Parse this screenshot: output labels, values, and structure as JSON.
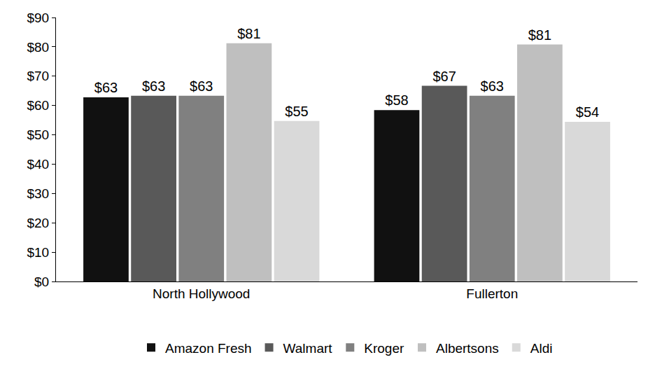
{
  "chart_data": {
    "type": "bar",
    "categories": [
      "North Hollywood",
      "Fullerton"
    ],
    "series": [
      {
        "name": "Amazon Fresh",
        "color": "#111111",
        "values": [
          62.8,
          58.4
        ],
        "value_labels": [
          "$63",
          "$58"
        ]
      },
      {
        "name": "Walmart",
        "color": "#595959",
        "values": [
          63.3,
          66.7
        ],
        "value_labels": [
          "$63",
          "$67"
        ]
      },
      {
        "name": "Kroger",
        "color": "#808080",
        "values": [
          63.3,
          63.3
        ],
        "value_labels": [
          "$63",
          "$63"
        ]
      },
      {
        "name": "Albertsons",
        "color": "#bfbfbf",
        "values": [
          81.2,
          80.8
        ],
        "value_labels": [
          "$81",
          "$81"
        ]
      },
      {
        "name": "Aldi",
        "color": "#d9d9d9",
        "values": [
          54.7,
          54.4
        ],
        "value_labels": [
          "$55",
          "$54"
        ]
      }
    ],
    "ylim": [
      0,
      90
    ],
    "yticks": [
      {
        "value": 0,
        "label": "$0"
      },
      {
        "value": 10,
        "label": "$10"
      },
      {
        "value": 20,
        "label": "$20"
      },
      {
        "value": 30,
        "label": "$30"
      },
      {
        "value": 40,
        "label": "$40"
      },
      {
        "value": 50,
        "label": "$50"
      },
      {
        "value": 60,
        "label": "$60"
      },
      {
        "value": 70,
        "label": "$70"
      },
      {
        "value": 80,
        "label": "$80"
      },
      {
        "value": 90,
        "label": "$90"
      }
    ],
    "grid": false,
    "legend": "bottom",
    "data_labels": true
  }
}
